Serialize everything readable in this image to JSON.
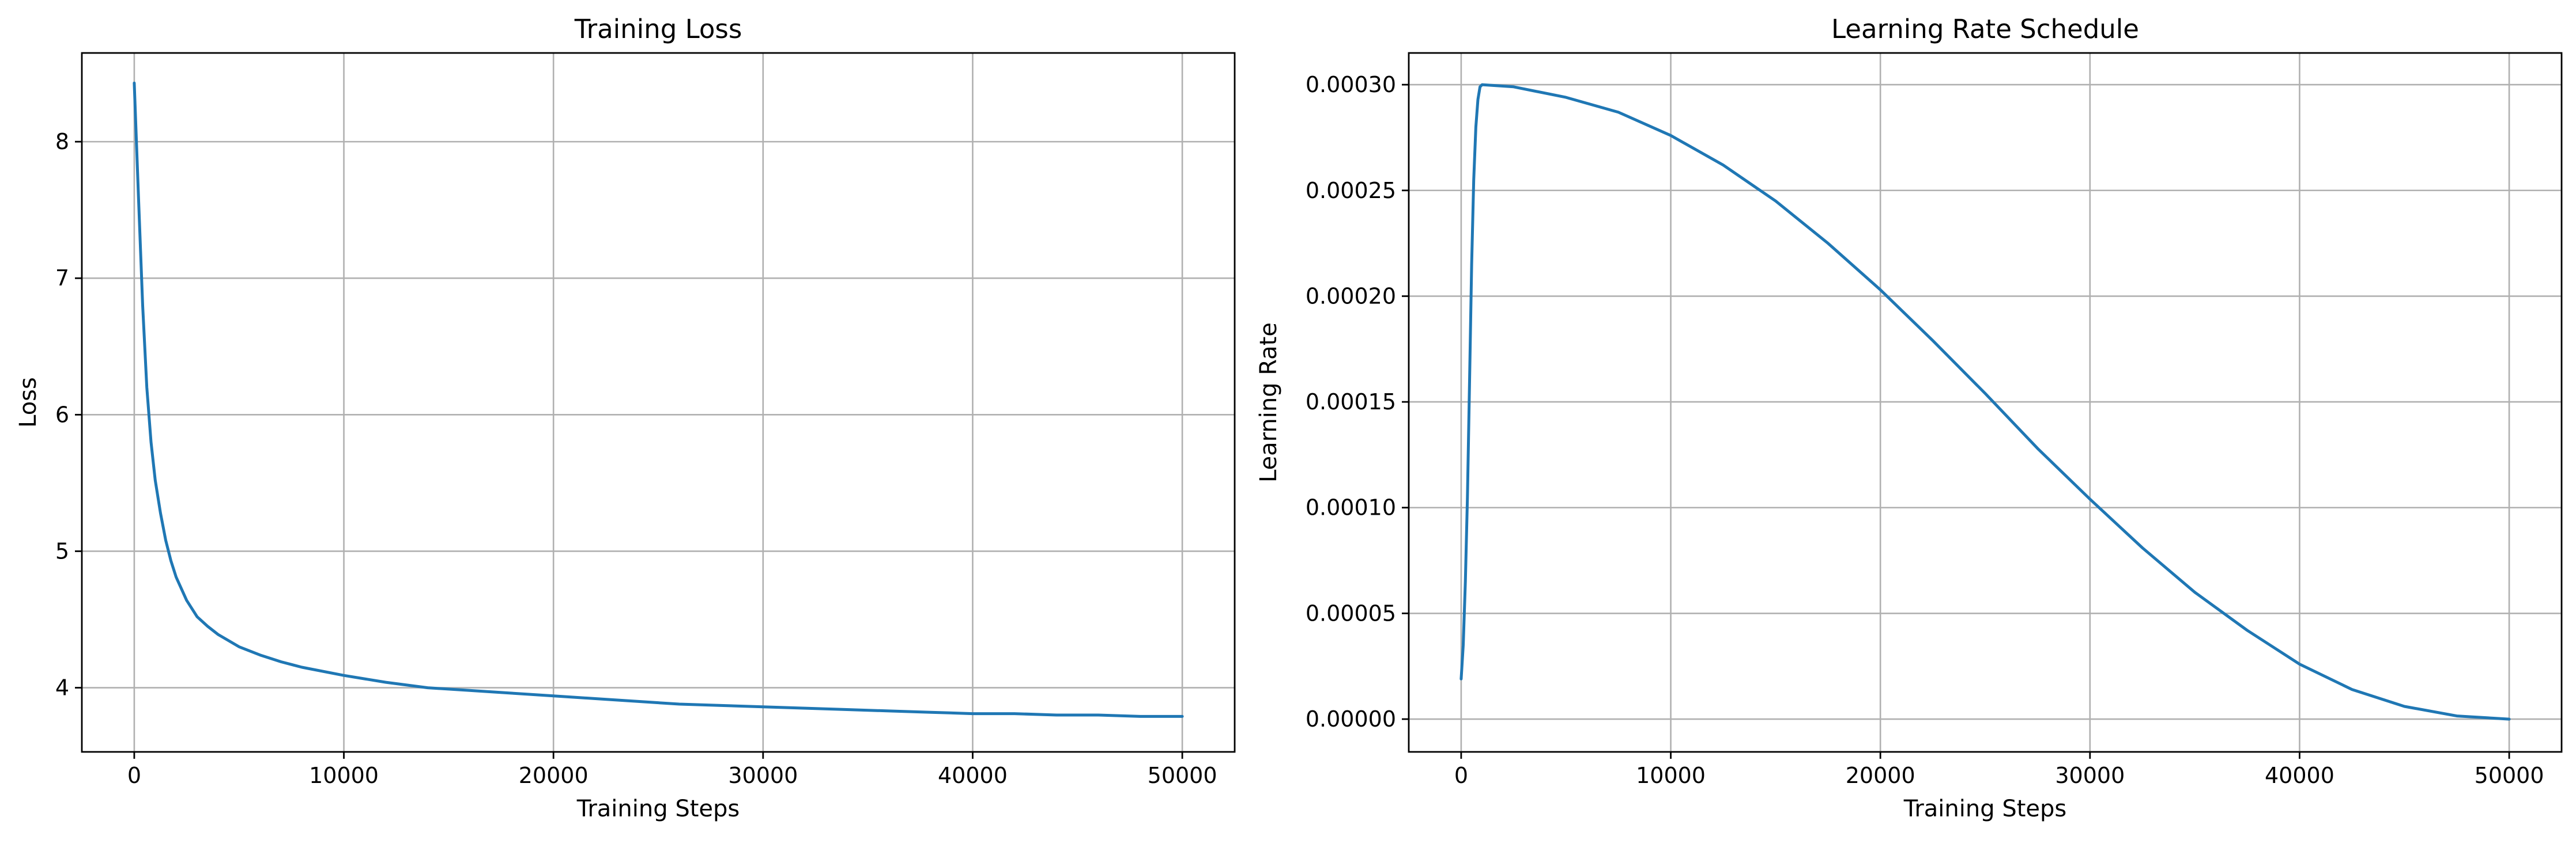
{
  "colors": {
    "series": "#1f77b4",
    "grid": "#b0b0b0",
    "axes": "#000000"
  },
  "chart_data": [
    {
      "type": "line",
      "title": "Training Loss",
      "xlabel": "Training Steps",
      "ylabel": "Loss",
      "grid": true,
      "xlim": [
        -2500,
        52500
      ],
      "ylim": [
        3.53,
        8.65
      ],
      "xticks": [
        0,
        10000,
        20000,
        30000,
        40000,
        50000
      ],
      "xtick_labels": [
        "0",
        "10000",
        "20000",
        "30000",
        "40000",
        "50000"
      ],
      "yticks": [
        4,
        5,
        6,
        7,
        8
      ],
      "ytick_labels": [
        "4",
        "5",
        "6",
        "7",
        "8"
      ],
      "series": [
        {
          "x": [
            0,
            200,
            400,
            600,
            800,
            1000,
            1250,
            1500,
            1750,
            2000,
            2500,
            3000,
            3500,
            4000,
            5000,
            6000,
            7000,
            8000,
            10000,
            12000,
            14000,
            16000,
            18000,
            20000,
            22000,
            24000,
            26000,
            28000,
            30000,
            32000,
            34000,
            36000,
            38000,
            40000,
            42000,
            44000,
            46000,
            48000,
            50000
          ],
          "values": [
            8.43,
            7.6,
            6.8,
            6.2,
            5.8,
            5.52,
            5.28,
            5.08,
            4.93,
            4.81,
            4.64,
            4.52,
            4.45,
            4.39,
            4.3,
            4.24,
            4.19,
            4.15,
            4.09,
            4.04,
            4.0,
            3.98,
            3.96,
            3.94,
            3.92,
            3.9,
            3.88,
            3.87,
            3.86,
            3.85,
            3.84,
            3.83,
            3.82,
            3.81,
            3.81,
            3.8,
            3.8,
            3.79,
            3.79
          ]
        }
      ]
    },
    {
      "type": "line",
      "title": "Learning Rate Schedule",
      "xlabel": "Training Steps",
      "ylabel": "Learning Rate",
      "grid": true,
      "xlim": [
        -2500,
        52500
      ],
      "ylim": [
        -1.55e-05,
        0.000315
      ],
      "xticks": [
        0,
        10000,
        20000,
        30000,
        40000,
        50000
      ],
      "xtick_labels": [
        "0",
        "10000",
        "20000",
        "30000",
        "40000",
        "50000"
      ],
      "yticks": [
        0,
        5e-05,
        0.0001,
        0.00015,
        0.0002,
        0.00025,
        0.0003
      ],
      "ytick_labels": [
        "0.00000",
        "0.00005",
        "0.00010",
        "0.00015",
        "0.00020",
        "0.00025",
        "0.00030"
      ],
      "series": [
        {
          "x": [
            0,
            100,
            200,
            300,
            400,
            500,
            600,
            700,
            800,
            900,
            1000,
            2500,
            5000,
            7500,
            10000,
            12500,
            15000,
            17500,
            20000,
            22500,
            25000,
            27500,
            30000,
            32500,
            35000,
            37500,
            40000,
            42500,
            45000,
            47500,
            50000
          ],
          "values": [
            1.9e-05,
            3.5e-05,
            6.5e-05,
            0.000105,
            0.00016,
            0.000215,
            0.000255,
            0.00028,
            0.000293,
            0.000299,
            0.0003,
            0.000299,
            0.000294,
            0.000287,
            0.000276,
            0.000262,
            0.000245,
            0.000225,
            0.000203,
            0.000179,
            0.000154,
            0.000128,
            0.000104,
            8.1e-05,
            6e-05,
            4.2e-05,
            2.6e-05,
            1.4e-05,
            6e-06,
            1.5e-06,
            0.0
          ]
        }
      ]
    }
  ]
}
